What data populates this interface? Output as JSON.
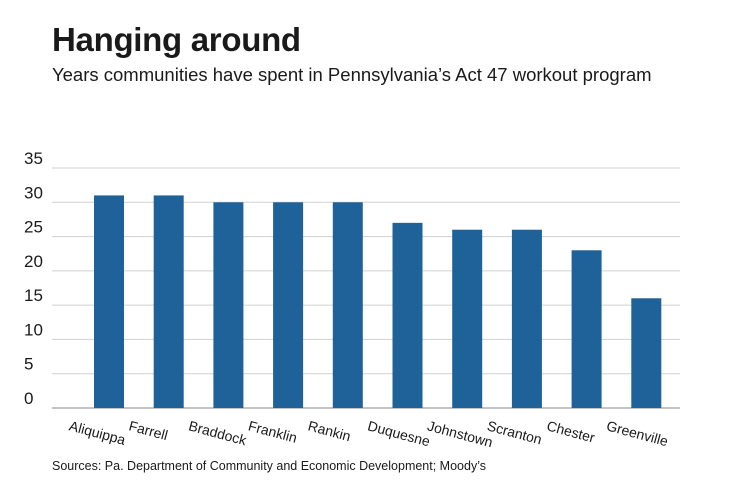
{
  "chart_data": {
    "type": "bar",
    "title": "Hanging around",
    "subtitle": "Years communities have spent in Pennsylvania’s Act 47 workout program",
    "categories": [
      "Aliquippa",
      "Farrell",
      "Braddock",
      "Franklin",
      "Rankin",
      "Duquesne",
      "Johnstown",
      "Scranton",
      "Chester",
      "Greenville"
    ],
    "values": [
      31,
      31,
      30,
      30,
      30,
      27,
      26,
      26,
      23,
      16
    ],
    "yticks": [
      "35",
      "30",
      "25",
      "20",
      "15",
      "10",
      "5",
      "0"
    ],
    "ylim": [
      0,
      35
    ],
    "xlabel": "",
    "ylabel": "",
    "grid": true,
    "bar_color": "#1f6299",
    "source": "Sources: Pa. Department of Community and Economic Development; Moody’s"
  }
}
